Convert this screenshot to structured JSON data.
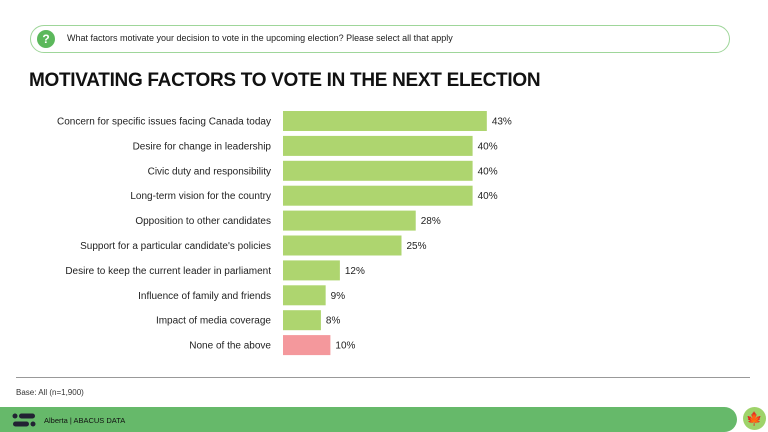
{
  "question": {
    "icon": "question-icon",
    "text": "What factors motivate your decision to vote in the upcoming election? Please select all that apply"
  },
  "chart_data": {
    "type": "bar",
    "orientation": "horizontal",
    "title": "MOTIVATING FACTORS TO VOTE IN THE NEXT ELECTION",
    "categories": [
      "Concern for specific issues facing Canada today",
      "Desire for change in leadership",
      "Civic duty and responsibility",
      "Long-term vision for the country",
      "Opposition to other candidates",
      "Support for a particular candidate's policies",
      "Desire to keep the current leader in parliament",
      "Influence of family and friends",
      "Impact of media coverage",
      "None of the above"
    ],
    "values": [
      43,
      40,
      40,
      40,
      28,
      25,
      12,
      9,
      8,
      10
    ],
    "value_labels": [
      "43%",
      "40%",
      "40%",
      "40%",
      "28%",
      "25%",
      "12%",
      "9%",
      "8%",
      "10%"
    ],
    "colors": {
      "default": "#aed56f",
      "none": "#f4989c"
    },
    "xlim": [
      0,
      100
    ]
  },
  "footer": {
    "base": "Base: All (n=1,900)",
    "source": "Alberta  |  ABACUS DATA",
    "brand_color": "#66b96a",
    "leaf_icon": "maple-leaf-icon"
  }
}
